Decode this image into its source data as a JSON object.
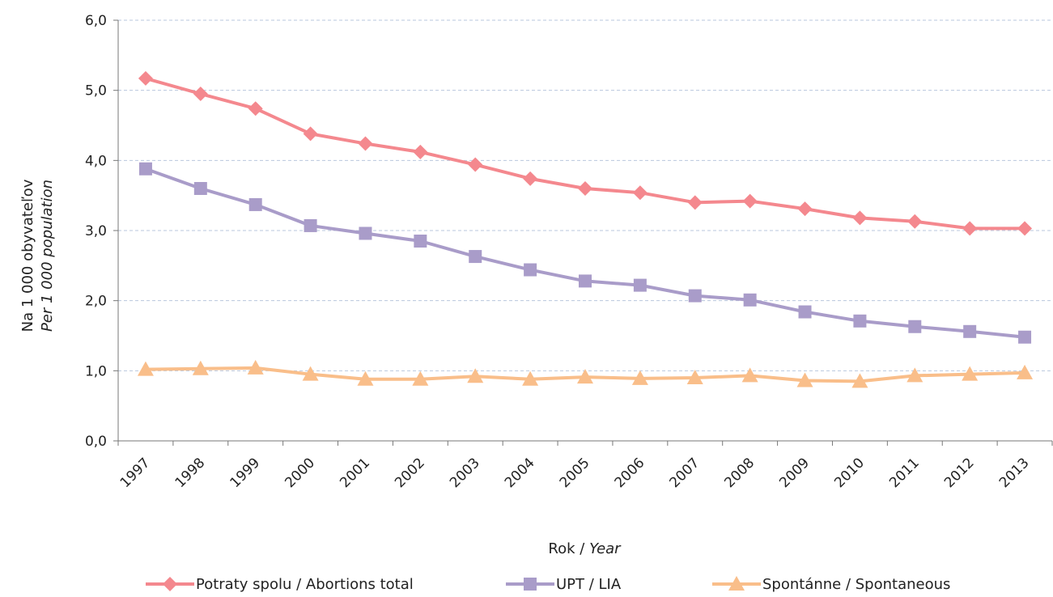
{
  "chart_data": {
    "type": "line",
    "categories": [
      "1997",
      "1998",
      "1999",
      "2000",
      "2001",
      "2002",
      "2003",
      "2004",
      "2005",
      "2006",
      "2007",
      "2008",
      "2009",
      "2010",
      "2011",
      "2012",
      "2013"
    ],
    "series": [
      {
        "name": "Potraty spolu / Abortions total",
        "color": "#f4888e",
        "marker": "diamond",
        "values": [
          5.17,
          4.95,
          4.74,
          4.38,
          4.24,
          4.12,
          3.94,
          3.74,
          3.6,
          3.54,
          3.4,
          3.42,
          3.31,
          3.18,
          3.13,
          3.03,
          3.03
        ]
      },
      {
        "name": "UPT / LIA",
        "color": "#a99cc9",
        "marker": "square",
        "values": [
          3.88,
          3.6,
          3.37,
          3.07,
          2.96,
          2.85,
          2.63,
          2.44,
          2.28,
          2.22,
          2.07,
          2.01,
          1.84,
          1.71,
          1.63,
          1.56,
          1.48
        ]
      },
      {
        "name": "Spontánne / Spontaneous",
        "color": "#f9be8a",
        "marker": "triangle",
        "values": [
          1.02,
          1.03,
          1.04,
          0.95,
          0.88,
          0.88,
          0.92,
          0.88,
          0.91,
          0.89,
          0.9,
          0.93,
          0.86,
          0.85,
          0.93,
          0.95,
          0.97
        ]
      }
    ],
    "yticks": [
      "0,0",
      "1,0",
      "2,0",
      "3,0",
      "4,0",
      "5,0",
      "6,0"
    ],
    "ylim": [
      0,
      6
    ],
    "ylabel_line1": "Na 1 000 obyvateľov",
    "ylabel_line2": "Per 1 000 population",
    "xlabel_prefix": "Rok / ",
    "xlabel_italic": "Year",
    "grid": true,
    "legend_position": "bottom"
  }
}
